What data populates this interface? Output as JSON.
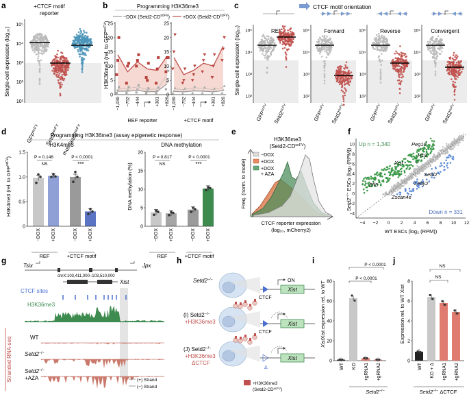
{
  "colors": {
    "gray": "#b9b9b9",
    "red": "#c0504d",
    "teal": "#4a94b8",
    "green": "#3d8b4f",
    "blue": "#5e78c0",
    "pink": "#e7b5ad",
    "lightgreen": "#8fc49a"
  },
  "a": {
    "letter": "a",
    "title1": "+CTCF motif",
    "title2": "reporter",
    "ylabel": "Single-cell expression (log₁₀)",
    "yticks": [
      "10⁵",
      "10⁴",
      "10³",
      "10²",
      "10¹"
    ],
    "xlabels": [
      "GFP",
      "Setd2",
      "mut-Setd2"
    ],
    "xsups": [
      "scFV",
      "scFV",
      "scFV"
    ]
  },
  "b": {
    "letter": "b",
    "title": "Programming H3K36me3",
    "leg1": "−DOX (Setd2-CD",
    "leg2": "+DOX (Setd2-CD",
    "legsup": "scFV",
    "legclose": ")",
    "ylabel": "H3K36me3 (rel. to GFP",
    "ysup": "scFV",
    "yclose": ")",
    "yticks": [
      "0",
      "5",
      "10",
      "15",
      "20",
      "25"
    ],
    "xticks": [
      "−1,039",
      "−752",
      "−444",
      "+381",
      "+826"
    ],
    "group1": "REF reporter",
    "group2": "+CTCF motif"
  },
  "c": {
    "letter": "c",
    "header": "CTCF motif orientation",
    "ylabel": "Single-cell expression (log₁₀)",
    "panels": [
      "REF",
      "Forward",
      "Reverse",
      "Convergent"
    ],
    "yticks": [
      "10⁵",
      "10⁴",
      "10³",
      "10²"
    ],
    "xlabels": [
      "GFP",
      "Setd2"
    ],
    "xsup": "scFV"
  },
  "d": {
    "letter": "d",
    "title": "Programming H3K36me3 (assay epigenetic response)",
    "h3title": "H3K4me3",
    "dmtitle": "DNA methylation",
    "h3ylabel": "H3K4me3 (rel. to GFP",
    "h3ysup": "scFV",
    "h3yclose": ")",
    "dmylabel": "DNA methylation (%)",
    "h3yticks": [
      "0",
      "0.5",
      "1.0",
      "1.5"
    ],
    "dmyticks": [
      "0",
      "5",
      "10",
      "15",
      "20"
    ],
    "xlabels": [
      "−DOX",
      "+DOX",
      "−DOX",
      "+DOX"
    ],
    "groups": [
      "REF",
      "+CTCF motif"
    ],
    "pvals": {
      "h3_ref": "P = 0.146",
      "h3_ctcf": "P < 0.0001",
      "dm_ref": "P = 0.817",
      "dm_ctcf": "P < 0.0001"
    },
    "ns": "NS",
    "stars": "***"
  },
  "e": {
    "letter": "e",
    "title1": "H3K36me3",
    "title2": "(Setd2-CD",
    "tsup": "scFV",
    "tclose": ")",
    "legend": [
      "−DOX",
      "+DOX",
      "+DOX",
      "+ AZA"
    ],
    "ylabel": "Freq. (norm. to mode)",
    "xlabel1": "CTCF reporter expression",
    "xlabel2": "(log₁₀, mCherry2)"
  },
  "f": {
    "letter": "f",
    "up": "Up n = 1,340",
    "down": "Down n = 331",
    "ylabel1": "Setd2",
    "ylabel2": "−/−",
    "ylabel3": " ESCs (log₂ (RPM))",
    "xlabel": "WT ESCs (log₂ (RPM))",
    "ticks": [
      "−4",
      "−2",
      "0",
      "2",
      "4",
      "6",
      "8",
      "10",
      "12"
    ],
    "genes": [
      "Peg10",
      "H19",
      "Xist",
      "Setd2",
      "Lefty2",
      "Elf5",
      "Zscan4e"
    ]
  },
  "g": {
    "letter": "g",
    "gene1": "Tsix",
    "gene2": "Jpx",
    "gene3": "Xist",
    "coords": "chrX:103,411,000–103,510,000",
    "ctcf": "CTCF sites",
    "h3": "H3K36me3",
    "tracks": [
      "WT",
      "Setd2",
      "Setd2",
      "+AZA"
    ],
    "tracksup": "−/−",
    "strandplus": "(+) Strand",
    "strandminus": "(−) Strand",
    "side": "Stranded RNA-seq"
  },
  "h": {
    "letter": "h",
    "rows": [
      "Setd2",
      "(I) Setd2",
      "+H3K36me3",
      "(J) Setd2",
      "+H3K36me3",
      "ΔCTCF"
    ],
    "sup": "−/−",
    "ctcf": "CTCF",
    "on": "ON",
    "xist": "Xist",
    "legend1": "+H3K36me3",
    "legend2": "(Setd2-CD",
    "legsup": "scFV",
    "legclose": ")"
  },
  "i": {
    "letter": "i",
    "ylabel": "Xist expression rel. to WT",
    "yticks": [
      "0",
      "20",
      "40",
      "60",
      "80"
    ],
    "xlabels": [
      "WT",
      "KO",
      "+gRNA1",
      "+gRNA2"
    ],
    "p1": "P < 0.0001",
    "p2": "P < 0.0001",
    "sub": "Setd2",
    "subsup": "−/−",
    "bars": [
      1,
      63,
      2.5,
      1
    ]
  },
  "j": {
    "letter": "j",
    "ylabel": "Expression rel. to WT Xist",
    "yticks": [
      "0",
      "2",
      "4",
      "6",
      "8"
    ],
    "xlabels": [
      "WT",
      "KO + Δ",
      "+gRNA1",
      "+gRNA2"
    ],
    "ns1": "NS",
    "ns2": "NS",
    "sub": "Setd2",
    "subsup": "−/−",
    "sub2": " ΔCTCF",
    "bars": [
      0.9,
      6.4,
      5.8,
      4.9
    ]
  }
}
